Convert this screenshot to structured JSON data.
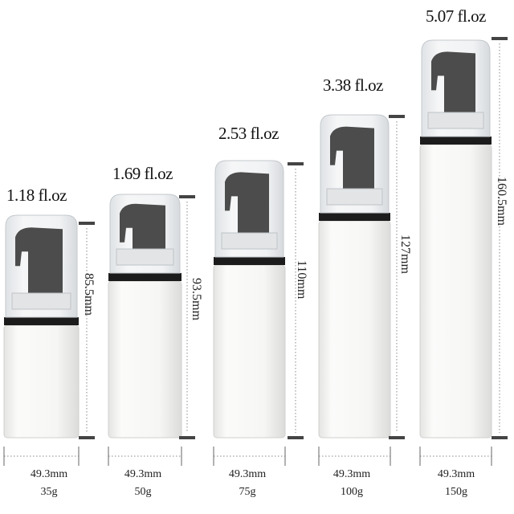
{
  "bottles": [
    {
      "capacity": "1.18 fl.oz",
      "height": "85.5mm",
      "diameter": "49.3mm",
      "weight": "35g"
    },
    {
      "capacity": "1.69 fl.oz",
      "height": "93.5mm",
      "diameter": "49.3mm",
      "weight": "50g"
    },
    {
      "capacity": "2.53 fl.oz",
      "height": "110mm",
      "diameter": "49.3mm",
      "weight": "75g"
    },
    {
      "capacity": "3.38 fl.oz",
      "height": "127mm",
      "diameter": "49.3mm",
      "weight": "100g"
    },
    {
      "capacity": "5.07 fl.oz",
      "height": "160.5mm",
      "diameter": "49.3mm",
      "weight": "150g"
    }
  ],
  "colors": {
    "bottle_body": "#f7f7f5",
    "pump_head": "#3a3a3a",
    "collar": "#1c1c1c",
    "cap_clear": "#e9ecef",
    "marker": "#444444"
  }
}
